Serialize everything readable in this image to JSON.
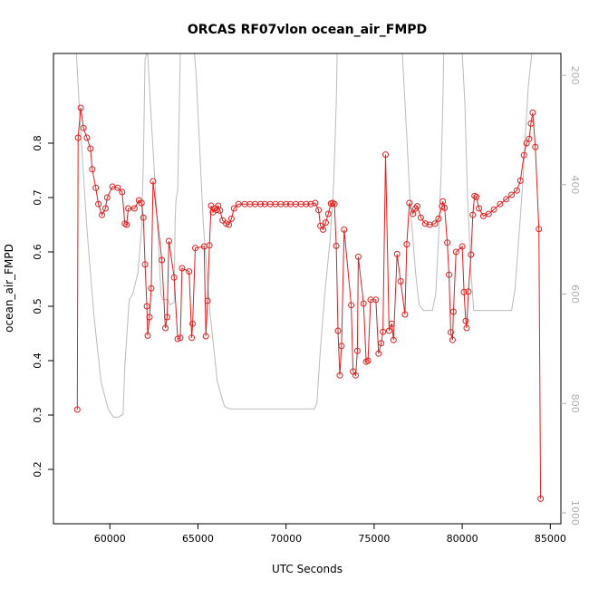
{
  "chart_data": {
    "type": "line",
    "title": "ORCAS RF07vlon ocean_air_FMPD",
    "xlabel": "UTC Seconds",
    "ylabel": "ocean_air_FMPD",
    "xlim": [
      56800,
      85600
    ],
    "ylim": [
      0.1,
      0.965
    ],
    "y2lim": [
      1020,
      160
    ],
    "x_ticks": [
      60000,
      65000,
      70000,
      75000,
      80000,
      85000
    ],
    "x_tick_labels": [
      "60000",
      "65000",
      "70000",
      "75000",
      "80000",
      "85000"
    ],
    "y_ticks": [
      0.2,
      0.3,
      0.4,
      0.5,
      0.6,
      0.7,
      0.8
    ],
    "y_tick_labels": [
      "0.2",
      "0.3",
      "0.4",
      "0.5",
      "0.6",
      "0.7",
      "0.8"
    ],
    "y2_ticks": [
      200,
      400,
      600,
      800,
      1000
    ],
    "y2_tick_labels": [
      "200",
      "400",
      "600",
      "800",
      "1000"
    ],
    "grid": false,
    "colors": {
      "series": "#e02020",
      "secondary": "#bbbbbb",
      "axis": "#000000",
      "y2_axis": "#b0b0b0"
    },
    "series": [
      {
        "values": [
          [
            58150,
            0.31
          ],
          [
            58200,
            0.81
          ],
          [
            58350,
            0.865
          ],
          [
            58500,
            0.828
          ],
          [
            58700,
            0.81
          ],
          [
            58900,
            0.79
          ],
          [
            59000,
            0.752
          ],
          [
            59200,
            0.718
          ],
          [
            59350,
            0.688
          ],
          [
            59550,
            0.668
          ],
          [
            59750,
            0.68
          ],
          [
            59850,
            0.7
          ],
          [
            60150,
            0.72
          ],
          [
            60450,
            0.718
          ],
          [
            60700,
            0.71
          ],
          [
            60850,
            0.652
          ],
          [
            60950,
            0.65
          ],
          [
            61050,
            0.68
          ],
          [
            61400,
            0.68
          ],
          [
            61650,
            0.695
          ],
          [
            61800,
            0.69
          ],
          [
            61900,
            0.663
          ],
          [
            62000,
            0.577
          ],
          [
            62100,
            0.5
          ],
          [
            62150,
            0.446
          ],
          [
            62250,
            0.48
          ],
          [
            62350,
            0.533
          ],
          [
            62450,
            0.73
          ],
          [
            62950,
            0.585
          ],
          [
            63150,
            0.46
          ],
          [
            63250,
            0.48
          ],
          [
            63350,
            0.62
          ],
          [
            63650,
            0.553
          ],
          [
            63850,
            0.44
          ],
          [
            64000,
            0.442
          ],
          [
            64100,
            0.57
          ],
          [
            64500,
            0.564
          ],
          [
            64650,
            0.442
          ],
          [
            64700,
            0.468
          ],
          [
            64850,
            0.607
          ],
          [
            65350,
            0.61
          ],
          [
            65450,
            0.445
          ],
          [
            65550,
            0.51
          ],
          [
            65650,
            0.612
          ],
          [
            65750,
            0.685
          ],
          [
            65850,
            0.673
          ],
          [
            65950,
            0.68
          ],
          [
            66050,
            0.677
          ],
          [
            66150,
            0.685
          ],
          [
            66250,
            0.676
          ],
          [
            66400,
            0.658
          ],
          [
            66600,
            0.652
          ],
          [
            66750,
            0.65
          ],
          [
            66900,
            0.661
          ],
          [
            67050,
            0.68
          ],
          [
            67300,
            0.688
          ],
          [
            67650,
            0.688
          ],
          [
            67950,
            0.688
          ],
          [
            68250,
            0.688
          ],
          [
            68550,
            0.688
          ],
          [
            68800,
            0.688
          ],
          [
            69100,
            0.688
          ],
          [
            69400,
            0.688
          ],
          [
            69700,
            0.688
          ],
          [
            70000,
            0.688
          ],
          [
            70250,
            0.688
          ],
          [
            70550,
            0.688
          ],
          [
            70850,
            0.688
          ],
          [
            71150,
            0.688
          ],
          [
            71400,
            0.688
          ],
          [
            71650,
            0.69
          ],
          [
            71850,
            0.677
          ],
          [
            71950,
            0.648
          ],
          [
            72100,
            0.641
          ],
          [
            72250,
            0.654
          ],
          [
            72400,
            0.67
          ],
          [
            72550,
            0.689
          ],
          [
            72650,
            0.69
          ],
          [
            72750,
            0.688
          ],
          [
            72850,
            0.611
          ],
          [
            72950,
            0.455
          ],
          [
            73050,
            0.373
          ],
          [
            73150,
            0.427
          ],
          [
            73300,
            0.641
          ],
          [
            73700,
            0.502
          ],
          [
            73800,
            0.38
          ],
          [
            73950,
            0.373
          ],
          [
            74050,
            0.418
          ],
          [
            74100,
            0.591
          ],
          [
            74400,
            0.505
          ],
          [
            74550,
            0.398
          ],
          [
            74650,
            0.4
          ],
          [
            74800,
            0.512
          ],
          [
            75100,
            0.512
          ],
          [
            75250,
            0.413
          ],
          [
            75400,
            0.432
          ],
          [
            75500,
            0.453
          ],
          [
            75650,
            0.779
          ],
          [
            75850,
            0.455
          ],
          [
            76000,
            0.468
          ],
          [
            76100,
            0.438
          ],
          [
            76300,
            0.596
          ],
          [
            76500,
            0.546
          ],
          [
            76750,
            0.485
          ],
          [
            76850,
            0.614
          ],
          [
            77000,
            0.69
          ],
          [
            77200,
            0.67
          ],
          [
            77350,
            0.68
          ],
          [
            77450,
            0.684
          ],
          [
            77650,
            0.663
          ],
          [
            77900,
            0.652
          ],
          [
            78150,
            0.65
          ],
          [
            78450,
            0.652
          ],
          [
            78650,
            0.661
          ],
          [
            78850,
            0.684
          ],
          [
            78900,
            0.693
          ],
          [
            79000,
            0.681
          ],
          [
            79150,
            0.617
          ],
          [
            79250,
            0.558
          ],
          [
            79350,
            0.452
          ],
          [
            79450,
            0.438
          ],
          [
            79500,
            0.49
          ],
          [
            79650,
            0.6
          ],
          [
            80000,
            0.61
          ],
          [
            80100,
            0.526
          ],
          [
            80200,
            0.473
          ],
          [
            80250,
            0.46
          ],
          [
            80350,
            0.527
          ],
          [
            80500,
            0.595
          ],
          [
            80600,
            0.668
          ],
          [
            80700,
            0.703
          ],
          [
            80800,
            0.701
          ],
          [
            80950,
            0.68
          ],
          [
            81200,
            0.666
          ],
          [
            81500,
            0.67
          ],
          [
            81800,
            0.678
          ],
          [
            82150,
            0.688
          ],
          [
            82500,
            0.697
          ],
          [
            82800,
            0.705
          ],
          [
            83100,
            0.713
          ],
          [
            83300,
            0.731
          ],
          [
            83500,
            0.778
          ],
          [
            83650,
            0.8
          ],
          [
            83800,
            0.808
          ],
          [
            83900,
            0.836
          ],
          [
            84000,
            0.856
          ],
          [
            84150,
            0.793
          ],
          [
            84350,
            0.642
          ],
          [
            84450,
            0.146
          ]
        ]
      }
    ],
    "secondary": {
      "axis": "right",
      "values": [
        [
          58100,
          160
        ],
        [
          58300,
          280
        ],
        [
          58700,
          480
        ],
        [
          59100,
          640
        ],
        [
          59500,
          760
        ],
        [
          59900,
          810
        ],
        [
          60200,
          825
        ],
        [
          60500,
          825
        ],
        [
          60750,
          820
        ],
        [
          60850,
          730
        ],
        [
          61100,
          610
        ],
        [
          61300,
          600
        ],
        [
          61600,
          560
        ],
        [
          61800,
          480
        ],
        [
          61900,
          360
        ],
        [
          62000,
          170
        ],
        [
          62100,
          160
        ],
        [
          62150,
          160
        ],
        [
          62350,
          280
        ],
        [
          62700,
          470
        ],
        [
          62900,
          600
        ],
        [
          63000,
          610
        ],
        [
          63300,
          610
        ],
        [
          63400,
          620
        ],
        [
          63650,
          615
        ],
        [
          63700,
          470
        ],
        [
          63750,
          430
        ],
        [
          63850,
          410
        ],
        [
          64000,
          160
        ],
        [
          64800,
          160
        ],
        [
          64900,
          200
        ],
        [
          65300,
          470
        ],
        [
          65700,
          640
        ],
        [
          66100,
          760
        ],
        [
          66500,
          805
        ],
        [
          66800,
          810
        ],
        [
          67200,
          810
        ],
        [
          71600,
          810
        ],
        [
          71750,
          800
        ],
        [
          71950,
          700
        ],
        [
          72200,
          600
        ],
        [
          72500,
          500
        ],
        [
          72700,
          400
        ],
        [
          72850,
          250
        ],
        [
          72900,
          160
        ],
        [
          76600,
          160
        ],
        [
          76850,
          310
        ],
        [
          77050,
          440
        ],
        [
          77350,
          560
        ],
        [
          77550,
          620
        ],
        [
          77800,
          630
        ],
        [
          78300,
          630
        ],
        [
          78500,
          600
        ],
        [
          78650,
          500
        ],
        [
          78800,
          380
        ],
        [
          78900,
          250
        ],
        [
          78950,
          160
        ],
        [
          80000,
          160
        ],
        [
          80150,
          250
        ],
        [
          80300,
          420
        ],
        [
          80500,
          560
        ],
        [
          80650,
          630
        ],
        [
          81300,
          630
        ],
        [
          82800,
          630
        ],
        [
          83000,
          590
        ],
        [
          83250,
          480
        ],
        [
          83450,
          390
        ],
        [
          83600,
          300
        ],
        [
          83750,
          220
        ],
        [
          83950,
          160
        ]
      ]
    }
  }
}
